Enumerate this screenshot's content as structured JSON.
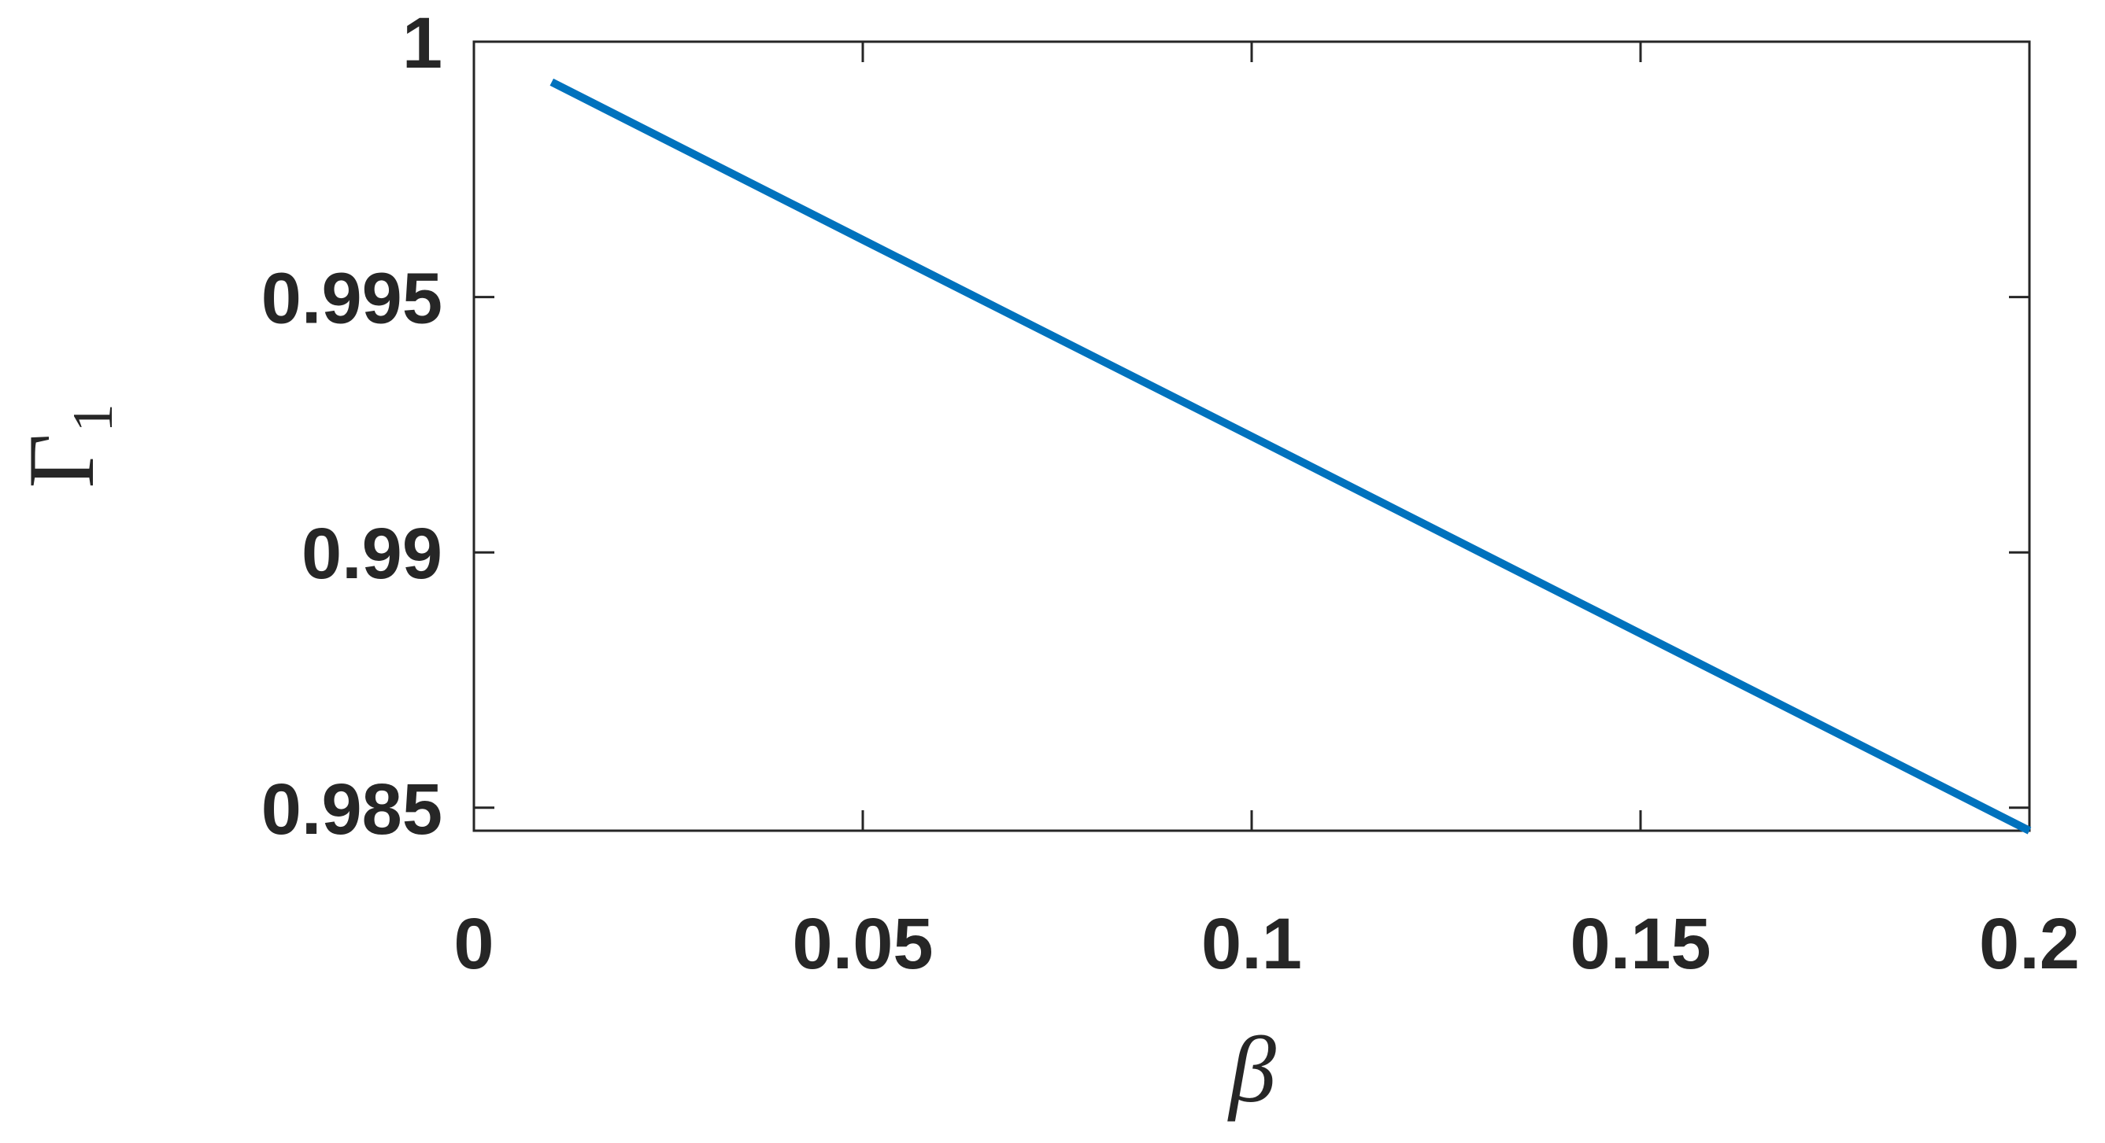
{
  "chart_data": {
    "type": "line",
    "xlabel": "β",
    "ylabel": "Γ₁",
    "x": [
      0.01,
      0.05,
      0.1,
      0.15,
      0.2
    ],
    "series": [
      {
        "color": "#0072bd",
        "values": [
          0.99921,
          0.99612,
          0.99227,
          0.98841,
          0.98455
        ]
      }
    ],
    "xlim": [
      0,
      0.2
    ],
    "xticks": [
      0,
      0.05,
      0.1,
      0.15,
      0.2
    ],
    "ylim": [
      0.98455,
      1
    ],
    "yticks": [
      0.985,
      0.99,
      0.995,
      1
    ],
    "grid": false
  }
}
